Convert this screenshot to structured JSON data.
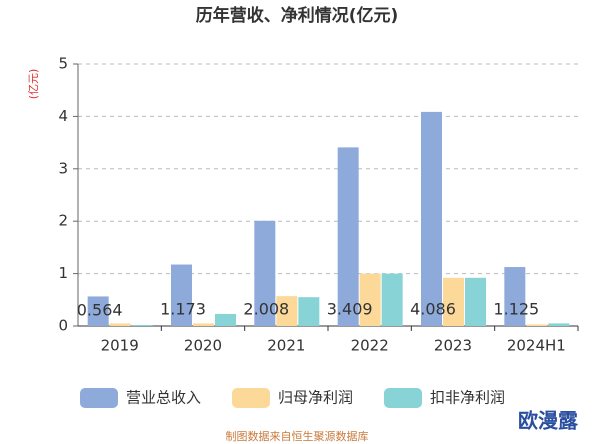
{
  "chart_data": {
    "type": "bar",
    "title": "历年营收、净利情况(亿元)",
    "y_label": "(亿元)",
    "categories": [
      "2019",
      "2020",
      "2021",
      "2022",
      "2023",
      "2024H1"
    ],
    "series": [
      {
        "name": "营业总收入",
        "color": "#8eaadb",
        "values": [
          0.564,
          1.173,
          2.008,
          3.409,
          4.086,
          1.125
        ]
      },
      {
        "name": "归母净利润",
        "color": "#fdd999",
        "values": [
          0.05,
          0.05,
          0.57,
          1.0,
          0.92,
          0.03
        ]
      },
      {
        "name": "扣非净利润",
        "color": "#88d3d6",
        "values": [
          0.02,
          0.23,
          0.55,
          1.0,
          0.92,
          0.05
        ]
      }
    ],
    "labeled_series": 0,
    "ylim": [
      0,
      5
    ],
    "yticks": [
      0,
      1,
      2,
      3,
      4,
      5
    ],
    "grid": true,
    "legend": "bottom",
    "source": "制图数据来自恒生聚源数据库",
    "watermark": "欧漫露"
  }
}
